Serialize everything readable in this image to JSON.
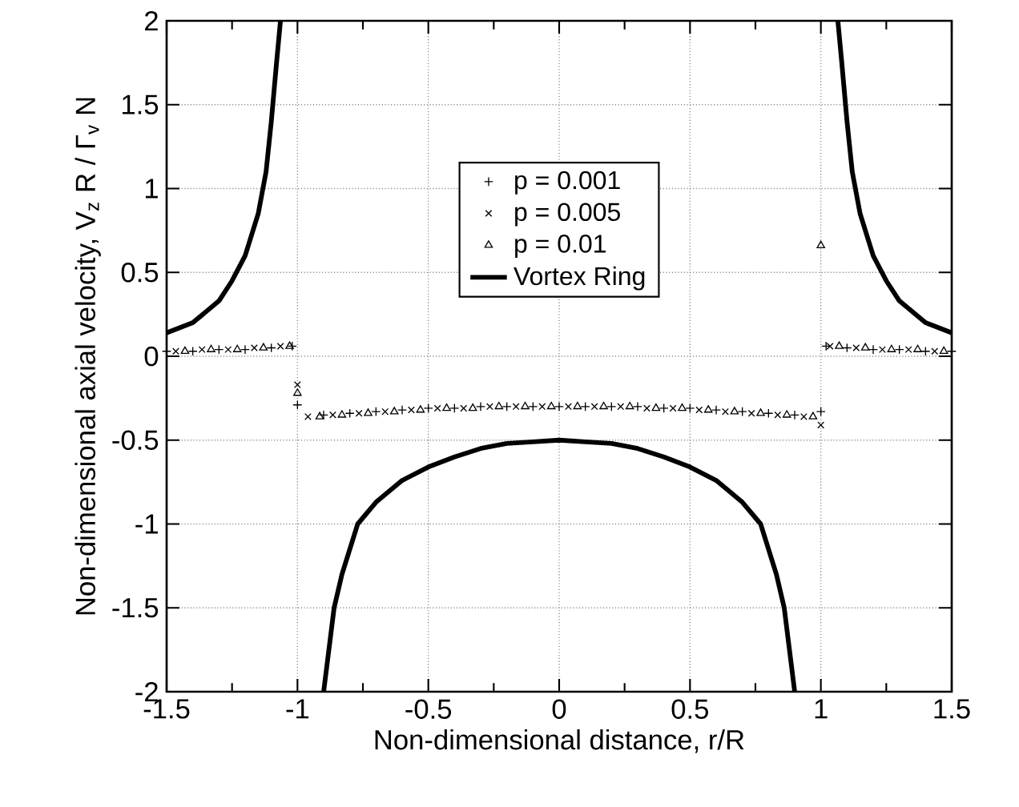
{
  "chart_data": {
    "type": "scatter",
    "xlabel": "Non-dimensional distance, r/R",
    "ylabel": "Non-dimensional axial velocity,  V$_{z}$ R / Γ$_{v}$ N",
    "xlim": [
      -1.5,
      1.5
    ],
    "ylim": [
      -2,
      2
    ],
    "xticks": [
      -1.5,
      -1,
      -0.5,
      0,
      0.5,
      1,
      1.5
    ],
    "yticks": [
      -2,
      -1.5,
      -1,
      -0.5,
      0,
      0.5,
      1,
      1.5,
      2
    ],
    "grid": true,
    "legend": "top",
    "series": [
      {
        "name": "p = 0.001",
        "color": "#000000",
        "x": [
          -1.5,
          -1.4,
          -1.3,
          -1.2,
          -1.1,
          -1.02,
          -1,
          -0.9,
          -0.8,
          -0.7,
          -0.6,
          -0.5,
          -0.4,
          -0.3,
          -0.2,
          -0.1,
          0,
          0.1,
          0.2,
          0.3,
          0.4,
          0.5,
          0.6,
          0.7,
          0.8,
          0.9,
          1,
          1.02,
          1.1,
          1.2,
          1.3,
          1.4,
          1.5
        ],
        "values": [
          0.03,
          0.03,
          0.04,
          0.04,
          0.05,
          0.06,
          -0.29,
          -0.35,
          -0.34,
          -0.33,
          -0.32,
          -0.31,
          -0.31,
          -0.3,
          -0.3,
          -0.3,
          -0.3,
          -0.3,
          -0.3,
          -0.3,
          -0.31,
          -0.31,
          -0.32,
          -0.33,
          -0.34,
          -0.35,
          -0.33,
          0.06,
          0.05,
          0.04,
          0.04,
          0.03,
          0.03
        ]
      },
      {
        "name": "p = 0.005",
        "marker": "cross",
        "color": "#000000",
        "x": [
          -1.465,
          -1.365,
          -1.265,
          -1.165,
          -1.065,
          -1,
          -0.96,
          -0.865,
          -0.765,
          -0.665,
          -0.565,
          -0.465,
          -0.365,
          -0.265,
          -0.165,
          -0.065,
          0.035,
          0.135,
          0.235,
          0.335,
          0.435,
          0.535,
          0.635,
          0.735,
          0.835,
          0.935,
          1,
          1.035,
          1.135,
          1.235,
          1.335,
          1.435
        ],
        "values": [
          0.03,
          0.04,
          0.04,
          0.05,
          0.06,
          -0.17,
          -0.36,
          -0.35,
          -0.34,
          -0.33,
          -0.32,
          -0.31,
          -0.31,
          -0.3,
          -0.3,
          -0.3,
          -0.3,
          -0.3,
          -0.3,
          -0.31,
          -0.31,
          -0.32,
          -0.33,
          -0.34,
          -0.35,
          -0.36,
          -0.41,
          0.06,
          0.05,
          0.04,
          0.04,
          0.03
        ]
      },
      {
        "name": "p = 0.01",
        "marker": "triangle",
        "color": "#000000",
        "x": [
          -1.43,
          -1.33,
          -1.23,
          -1.13,
          -1.03,
          -1,
          -0.915,
          -0.83,
          -0.73,
          -0.63,
          -0.53,
          -0.43,
          -0.33,
          -0.23,
          -0.13,
          -0.03,
          0.07,
          0.17,
          0.27,
          0.37,
          0.47,
          0.57,
          0.67,
          0.77,
          0.87,
          0.97,
          1,
          1.07,
          1.17,
          1.27,
          1.37,
          1.47
        ],
        "values": [
          0.03,
          0.04,
          0.04,
          0.05,
          0.06,
          -0.22,
          -0.36,
          -0.35,
          -0.34,
          -0.33,
          -0.32,
          -0.31,
          -0.31,
          -0.3,
          -0.3,
          -0.3,
          -0.3,
          -0.3,
          -0.3,
          -0.31,
          -0.31,
          -0.32,
          -0.33,
          -0.34,
          -0.35,
          -0.36,
          0.66,
          0.06,
          0.05,
          0.04,
          0.04,
          0.03
        ]
      },
      {
        "name": "Vortex Ring",
        "type": "line",
        "marker": "none",
        "color": "#000000",
        "x": [
          -1.5,
          -1.4,
          -1.3,
          -1.25,
          -1.2,
          -1.15,
          -1.12,
          -1.1,
          -1.08,
          -1.065,
          -1,
          -0.9,
          -0.88,
          -0.86,
          -0.83,
          -0.77,
          -0.7,
          -0.6,
          -0.5,
          -0.4,
          -0.3,
          -0.2,
          -0.1,
          0,
          0.1,
          0.2,
          0.3,
          0.4,
          0.5,
          0.6,
          0.7,
          0.77,
          0.83,
          0.86,
          0.88,
          0.9,
          1,
          1.065,
          1.08,
          1.1,
          1.12,
          1.15,
          1.2,
          1.25,
          1.3,
          1.4,
          1.5
        ],
        "values": [
          0.14,
          0.2,
          0.33,
          0.45,
          0.6,
          0.85,
          1.1,
          1.4,
          1.75,
          2,
          null,
          -2,
          -1.75,
          -1.5,
          -1.3,
          -1,
          -0.87,
          -0.74,
          -0.66,
          -0.6,
          -0.55,
          -0.52,
          -0.51,
          -0.5,
          -0.51,
          -0.52,
          -0.55,
          -0.6,
          -0.66,
          -0.74,
          -0.87,
          -1,
          -1.3,
          -1.5,
          -1.75,
          -2,
          null,
          2,
          1.75,
          1.4,
          1.1,
          0.85,
          0.6,
          0.45,
          0.33,
          0.2,
          0.14
        ]
      }
    ]
  }
}
